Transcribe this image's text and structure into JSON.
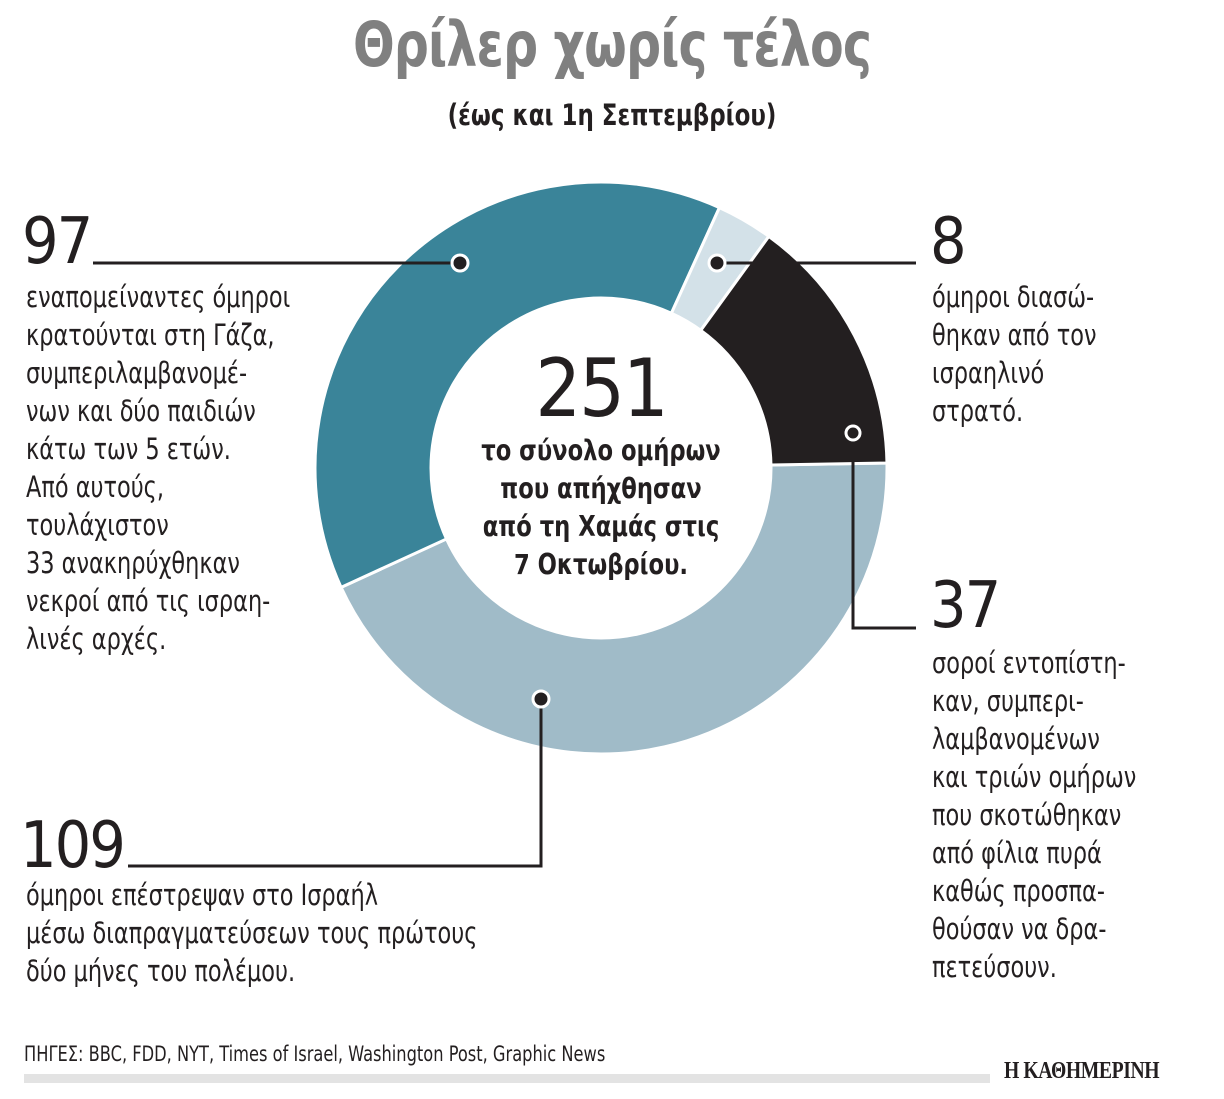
{
  "header": {
    "title": "Θρίλερ χωρίς τέλος",
    "subtitle": "(έως και 1η Σεπτεμβρίου)"
  },
  "center": {
    "total": "251",
    "label": "το σύνολο ομήρων\nπου απήχθησαν\nαπό τη Χαμάς στις\n7 Οκτωβρίου."
  },
  "callouts": {
    "remaining": {
      "value": "97",
      "text": "εναπομείναντες όμηροι\nκρατούνται στη Γάζα,\nσυμπεριλαμβανομέ-\nνων και δύο παιδιών\nκάτω των 5 ετών.\nΑπό αυτούς,\nτουλάχιστον\n33 ανακηρύχθηκαν\nνεκροί από τις ισραη-\nλινές αρχές."
    },
    "rescued": {
      "value": "8",
      "text": "όμηροι διασώ-\nθηκαν από τον\nισραηλινό\nστρατό."
    },
    "bodies": {
      "value": "37",
      "text": "σοροί εντοπίστη-\nκαν, συμπερι-\nλαμβανομένων\nκαι τριών ομήρων\nπου σκοτώθηκαν\nαπό φίλια πυρά\nκαθώς προσπα-\nθούσαν να δρα-\nπετεύσουν."
    },
    "returned": {
      "value": "109",
      "text": "όμηροι επέστρεψαν στο Ισραήλ\nμέσω διαπραγματεύσεων τους πρώτους\nδύο μήνες του πολέμου."
    }
  },
  "footer": {
    "sources": "ΠΗΓΕΣ: BBC, FDD, NYT, Times of Israel, Washington Post, Graphic News",
    "brand": "Η ΚΑΘΗΜΕΡΙΝΗ"
  },
  "colors": {
    "remaining": "#3a8499",
    "rescued": "#d3e1e8",
    "bodies": "#231f20",
    "returned": "#a0bbc8",
    "title": "#808080"
  },
  "chart_data": {
    "type": "pie",
    "variant": "donut",
    "title": "Θρίλερ χωρίς τέλος",
    "subtitle": "(έως και 1η Σεπτεμβρίου)",
    "total": 251,
    "total_label": "το σύνολο ομήρων που απήχθησαν από τη Χαμάς στις 7 Οκτωβρίου.",
    "categories": [
      "όμηροι επέστρεψαν στο Ισραήλ μέσω διαπραγματεύσεων",
      "εναπομείναντες όμηροι κρατούνται στη Γάζα",
      "όμηροι διασώθηκαν από τον ισραηλινό στρατό",
      "σοροί εντοπίστηκαν"
    ],
    "values": [
      109,
      97,
      8,
      37
    ],
    "colors": [
      "#a0bbc8",
      "#3a8499",
      "#d3e1e8",
      "#231f20"
    ],
    "annotations": [
      "Από τους 97, τουλάχιστον 33 ανακηρύχθηκαν νεκροί από τις ισραηλινές αρχές",
      "Οι 37 σοροί περιλαμβάνουν τρεις ομήρους που σκοτώθηκαν από φίλια πυρά"
    ],
    "legend": "none (direct callouts)"
  }
}
